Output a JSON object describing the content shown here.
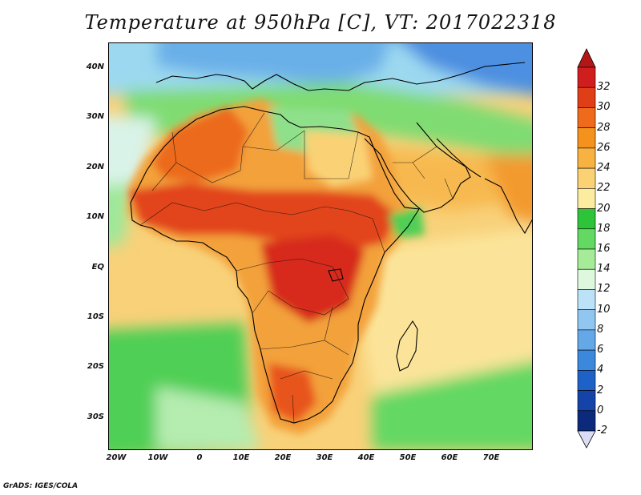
{
  "title": "Temperature at 950hPa [C], VT: 2017022318",
  "credit": "GrADS: IGES/COLA",
  "map": {
    "variable": "Temperature at 950hPa",
    "units": "C",
    "valid_time": "2017022318",
    "lon_range": [
      -22,
      80
    ],
    "lat_range": [
      -37,
      45
    ],
    "lat_ticks": [
      {
        "value": 40,
        "label": "40N"
      },
      {
        "value": 30,
        "label": "30N"
      },
      {
        "value": 20,
        "label": "20N"
      },
      {
        "value": 10,
        "label": "10N"
      },
      {
        "value": 0,
        "label": "EQ"
      },
      {
        "value": -10,
        "label": "10S"
      },
      {
        "value": -20,
        "label": "20S"
      },
      {
        "value": -30,
        "label": "30S"
      }
    ],
    "lon_ticks": [
      {
        "value": -20,
        "label": "20W"
      },
      {
        "value": -10,
        "label": "10W"
      },
      {
        "value": 0,
        "label": "0"
      },
      {
        "value": 10,
        "label": "10E"
      },
      {
        "value": 20,
        "label": "20E"
      },
      {
        "value": 30,
        "label": "30E"
      },
      {
        "value": 40,
        "label": "40E"
      },
      {
        "value": 50,
        "label": "50E"
      },
      {
        "value": 60,
        "label": "60E"
      },
      {
        "value": 70,
        "label": "70E"
      }
    ]
  },
  "colorbar": {
    "labels": [
      "32",
      "30",
      "28",
      "26",
      "24",
      "22",
      "20",
      "18",
      "16",
      "14",
      "12",
      "10",
      "8",
      "6",
      "4",
      "2",
      "0",
      "-2"
    ],
    "colors": [
      "#d01e1e",
      "#e03e16",
      "#ef6a1a",
      "#f5921e",
      "#f8b241",
      "#fad274",
      "#fbeca0",
      "#2ec43a",
      "#63d863",
      "#a6ec98",
      "#ddf8dc",
      "#bce2f8",
      "#90c6f0",
      "#64a8e8",
      "#3c88dc",
      "#1f62c7",
      "#1444aa",
      "#0c2a7c"
    ],
    "top_arrow_color": "#b31616",
    "bottom_arrow_color": "#dcdcf4"
  }
}
